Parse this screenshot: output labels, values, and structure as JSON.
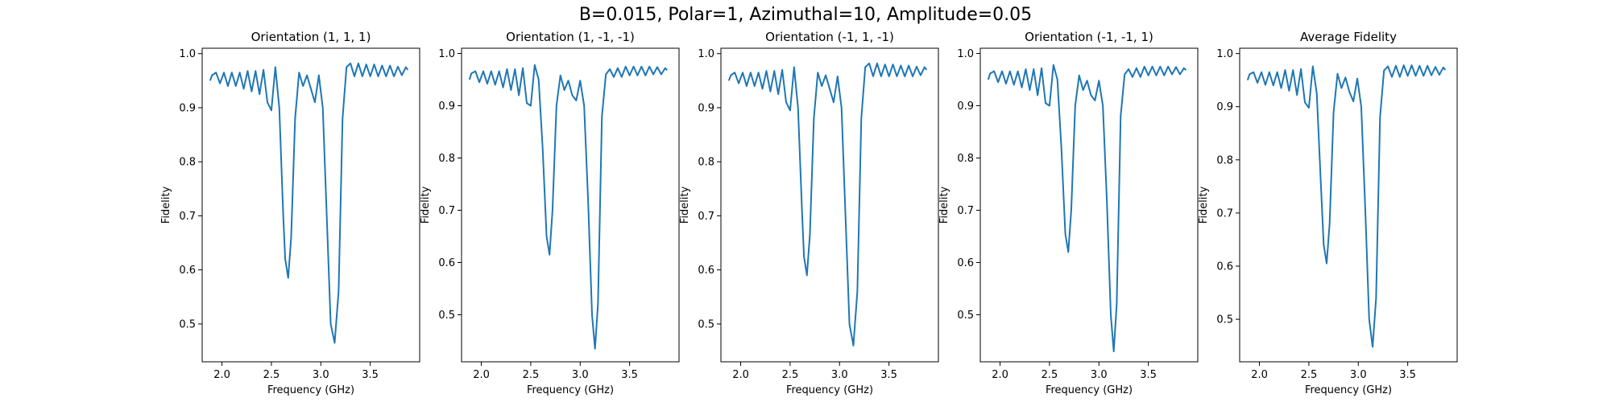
{
  "figure": {
    "title": "B=0.015, Polar=1, Azimuthal=10, Amplitude=0.05",
    "line_color": "#1f77b4"
  },
  "chart_data": [
    {
      "type": "line",
      "title": "Orientation (1, 1, 1)",
      "xlabel": "Frequency (GHz)",
      "ylabel": "Fidelity",
      "xlim": [
        1.8,
        4.0
      ],
      "ylim": [
        0.43,
        1.01
      ],
      "xticks": [
        2.0,
        2.5,
        3.0,
        3.5
      ],
      "xtick_labels": [
        "2.0",
        "2.5",
        "3.0",
        "3.5"
      ],
      "yticks": [
        0.5,
        0.6,
        0.7,
        0.8,
        0.9,
        1.0
      ],
      "ytick_labels": [
        "0.5",
        "0.6",
        "0.7",
        "0.8",
        "0.9",
        "1.0"
      ],
      "grid": false,
      "series": [
        {
          "x": [
            1.88,
            1.9,
            1.94,
            1.98,
            2.02,
            2.06,
            2.1,
            2.14,
            2.18,
            2.22,
            2.26,
            2.3,
            2.34,
            2.38,
            2.42,
            2.46,
            2.5,
            2.54,
            2.58,
            2.62,
            2.64,
            2.67,
            2.7,
            2.74,
            2.78,
            2.82,
            2.86,
            2.9,
            2.94,
            2.98,
            3.02,
            3.06,
            3.1,
            3.14,
            3.18,
            3.22,
            3.26,
            3.3,
            3.34,
            3.38,
            3.42,
            3.46,
            3.5,
            3.54,
            3.58,
            3.62,
            3.66,
            3.7,
            3.74,
            3.78,
            3.82,
            3.86,
            3.88
          ],
          "y": [
            0.95,
            0.96,
            0.965,
            0.945,
            0.965,
            0.94,
            0.965,
            0.94,
            0.965,
            0.935,
            0.968,
            0.93,
            0.968,
            0.925,
            0.97,
            0.91,
            0.895,
            0.975,
            0.9,
            0.7,
            0.62,
            0.585,
            0.66,
            0.88,
            0.965,
            0.94,
            0.96,
            0.935,
            0.91,
            0.96,
            0.9,
            0.7,
            0.5,
            0.465,
            0.56,
            0.88,
            0.975,
            0.982,
            0.958,
            0.982,
            0.958,
            0.98,
            0.958,
            0.98,
            0.958,
            0.978,
            0.958,
            0.978,
            0.958,
            0.976,
            0.96,
            0.975,
            0.97
          ]
        }
      ]
    },
    {
      "type": "line",
      "title": "Orientation (1, -1, -1)",
      "xlabel": "Frequency (GHz)",
      "ylabel": "Fidelity",
      "xlim": [
        1.8,
        4.0
      ],
      "ylim": [
        0.41,
        1.01
      ],
      "xticks": [
        2.0,
        2.5,
        3.0,
        3.5
      ],
      "xtick_labels": [
        "2.0",
        "2.5",
        "3.0",
        "3.5"
      ],
      "yticks": [
        0.5,
        0.6,
        0.7,
        0.8,
        0.9,
        1.0
      ],
      "ytick_labels": [
        "0.5",
        "0.6",
        "0.7",
        "0.8",
        "0.9",
        "1.0"
      ],
      "grid": false,
      "series": [
        {
          "x": [
            1.88,
            1.9,
            1.94,
            1.98,
            2.02,
            2.06,
            2.1,
            2.14,
            2.18,
            2.22,
            2.26,
            2.3,
            2.34,
            2.38,
            2.42,
            2.46,
            2.5,
            2.54,
            2.58,
            2.62,
            2.66,
            2.69,
            2.72,
            2.76,
            2.8,
            2.84,
            2.88,
            2.92,
            2.96,
            3.0,
            3.04,
            3.08,
            3.12,
            3.15,
            3.18,
            3.22,
            3.26,
            3.3,
            3.34,
            3.38,
            3.42,
            3.46,
            3.5,
            3.54,
            3.58,
            3.62,
            3.66,
            3.7,
            3.74,
            3.78,
            3.82,
            3.86,
            3.88
          ],
          "y": [
            0.95,
            0.962,
            0.966,
            0.945,
            0.966,
            0.942,
            0.966,
            0.94,
            0.966,
            0.935,
            0.97,
            0.93,
            0.97,
            0.92,
            0.972,
            0.905,
            0.9,
            0.978,
            0.95,
            0.82,
            0.65,
            0.615,
            0.7,
            0.9,
            0.958,
            0.93,
            0.948,
            0.92,
            0.91,
            0.948,
            0.9,
            0.72,
            0.5,
            0.435,
            0.52,
            0.88,
            0.96,
            0.97,
            0.955,
            0.972,
            0.955,
            0.975,
            0.958,
            0.975,
            0.958,
            0.975,
            0.958,
            0.975,
            0.96,
            0.974,
            0.96,
            0.972,
            0.968
          ]
        }
      ]
    },
    {
      "type": "line",
      "title": "Orientation (-1, 1, -1)",
      "xlabel": "Frequency (GHz)",
      "ylabel": "Fidelity",
      "xlim": [
        1.8,
        4.0
      ],
      "ylim": [
        0.43,
        1.01
      ],
      "xticks": [
        2.0,
        2.5,
        3.0,
        3.5
      ],
      "xtick_labels": [
        "2.0",
        "2.5",
        "3.0",
        "3.5"
      ],
      "yticks": [
        0.5,
        0.6,
        0.7,
        0.8,
        0.9,
        1.0
      ],
      "ytick_labels": [
        "0.5",
        "0.6",
        "0.7",
        "0.8",
        "0.9",
        "1.0"
      ],
      "grid": false,
      "series": [
        {
          "x": [
            1.88,
            1.9,
            1.94,
            1.98,
            2.02,
            2.06,
            2.1,
            2.14,
            2.18,
            2.22,
            2.26,
            2.3,
            2.34,
            2.38,
            2.42,
            2.46,
            2.5,
            2.54,
            2.58,
            2.62,
            2.64,
            2.67,
            2.7,
            2.74,
            2.78,
            2.82,
            2.86,
            2.9,
            2.94,
            2.98,
            3.02,
            3.06,
            3.1,
            3.14,
            3.18,
            3.22,
            3.26,
            3.3,
            3.34,
            3.38,
            3.42,
            3.46,
            3.5,
            3.54,
            3.58,
            3.62,
            3.66,
            3.7,
            3.74,
            3.78,
            3.82,
            3.86,
            3.88
          ],
          "y": [
            0.95,
            0.96,
            0.965,
            0.945,
            0.965,
            0.94,
            0.965,
            0.94,
            0.965,
            0.935,
            0.968,
            0.93,
            0.968,
            0.925,
            0.97,
            0.91,
            0.895,
            0.975,
            0.9,
            0.71,
            0.625,
            0.59,
            0.665,
            0.88,
            0.965,
            0.94,
            0.96,
            0.935,
            0.91,
            0.958,
            0.9,
            0.7,
            0.5,
            0.46,
            0.56,
            0.88,
            0.975,
            0.982,
            0.958,
            0.982,
            0.958,
            0.98,
            0.958,
            0.98,
            0.958,
            0.978,
            0.958,
            0.978,
            0.958,
            0.976,
            0.96,
            0.975,
            0.97
          ]
        }
      ]
    },
    {
      "type": "line",
      "title": "Orientation (-1, -1, 1)",
      "xlabel": "Frequency (GHz)",
      "ylabel": "Fidelity",
      "xlim": [
        1.8,
        4.0
      ],
      "ylim": [
        0.41,
        1.01
      ],
      "xticks": [
        2.0,
        2.5,
        3.0,
        3.5
      ],
      "xtick_labels": [
        "2.0",
        "2.5",
        "3.0",
        "3.5"
      ],
      "yticks": [
        0.5,
        0.6,
        0.7,
        0.8,
        0.9,
        1.0
      ],
      "ytick_labels": [
        "0.5",
        "0.6",
        "0.7",
        "0.8",
        "0.9",
        "1.0"
      ],
      "grid": false,
      "series": [
        {
          "x": [
            1.88,
            1.9,
            1.94,
            1.98,
            2.02,
            2.06,
            2.1,
            2.14,
            2.18,
            2.22,
            2.26,
            2.3,
            2.34,
            2.38,
            2.42,
            2.46,
            2.5,
            2.54,
            2.58,
            2.62,
            2.66,
            2.69,
            2.72,
            2.76,
            2.8,
            2.84,
            2.88,
            2.92,
            2.96,
            3.0,
            3.04,
            3.08,
            3.12,
            3.15,
            3.18,
            3.22,
            3.26,
            3.3,
            3.34,
            3.38,
            3.42,
            3.46,
            3.5,
            3.54,
            3.58,
            3.62,
            3.66,
            3.7,
            3.74,
            3.78,
            3.82,
            3.86,
            3.88
          ],
          "y": [
            0.95,
            0.962,
            0.966,
            0.945,
            0.966,
            0.942,
            0.966,
            0.94,
            0.966,
            0.935,
            0.97,
            0.93,
            0.97,
            0.92,
            0.972,
            0.905,
            0.9,
            0.978,
            0.95,
            0.82,
            0.655,
            0.62,
            0.7,
            0.9,
            0.958,
            0.93,
            0.948,
            0.92,
            0.91,
            0.948,
            0.9,
            0.72,
            0.5,
            0.43,
            0.52,
            0.88,
            0.96,
            0.97,
            0.955,
            0.972,
            0.955,
            0.975,
            0.958,
            0.975,
            0.958,
            0.975,
            0.958,
            0.975,
            0.96,
            0.974,
            0.96,
            0.972,
            0.968
          ]
        }
      ]
    },
    {
      "type": "line",
      "title": "Average Fidelity",
      "xlabel": "Frequency (GHz)",
      "ylabel": "Fidelity",
      "xlim": [
        1.8,
        4.0
      ],
      "ylim": [
        0.42,
        1.01
      ],
      "xticks": [
        2.0,
        2.5,
        3.0,
        3.5
      ],
      "xtick_labels": [
        "2.0",
        "2.5",
        "3.0",
        "3.5"
      ],
      "yticks": [
        0.5,
        0.6,
        0.7,
        0.8,
        0.9,
        1.0
      ],
      "ytick_labels": [
        "0.5",
        "0.6",
        "0.7",
        "0.8",
        "0.9",
        "1.0"
      ],
      "grid": false,
      "series": [
        {
          "x": [
            1.88,
            1.9,
            1.94,
            1.98,
            2.02,
            2.06,
            2.1,
            2.14,
            2.18,
            2.22,
            2.26,
            2.3,
            2.34,
            2.38,
            2.42,
            2.46,
            2.5,
            2.54,
            2.58,
            2.62,
            2.65,
            2.68,
            2.71,
            2.75,
            2.79,
            2.83,
            2.87,
            2.91,
            2.95,
            2.99,
            3.03,
            3.07,
            3.11,
            3.145,
            3.18,
            3.22,
            3.26,
            3.3,
            3.34,
            3.38,
            3.42,
            3.46,
            3.5,
            3.54,
            3.58,
            3.62,
            3.66,
            3.7,
            3.74,
            3.78,
            3.82,
            3.86,
            3.88
          ],
          "y": [
            0.95,
            0.961,
            0.965,
            0.945,
            0.965,
            0.941,
            0.965,
            0.94,
            0.965,
            0.935,
            0.969,
            0.93,
            0.969,
            0.922,
            0.971,
            0.908,
            0.898,
            0.976,
            0.925,
            0.76,
            0.64,
            0.605,
            0.68,
            0.89,
            0.962,
            0.935,
            0.955,
            0.928,
            0.91,
            0.953,
            0.9,
            0.71,
            0.5,
            0.448,
            0.54,
            0.88,
            0.968,
            0.976,
            0.956,
            0.977,
            0.956,
            0.978,
            0.958,
            0.978,
            0.958,
            0.977,
            0.958,
            0.977,
            0.959,
            0.975,
            0.96,
            0.974,
            0.969
          ]
        }
      ]
    }
  ]
}
